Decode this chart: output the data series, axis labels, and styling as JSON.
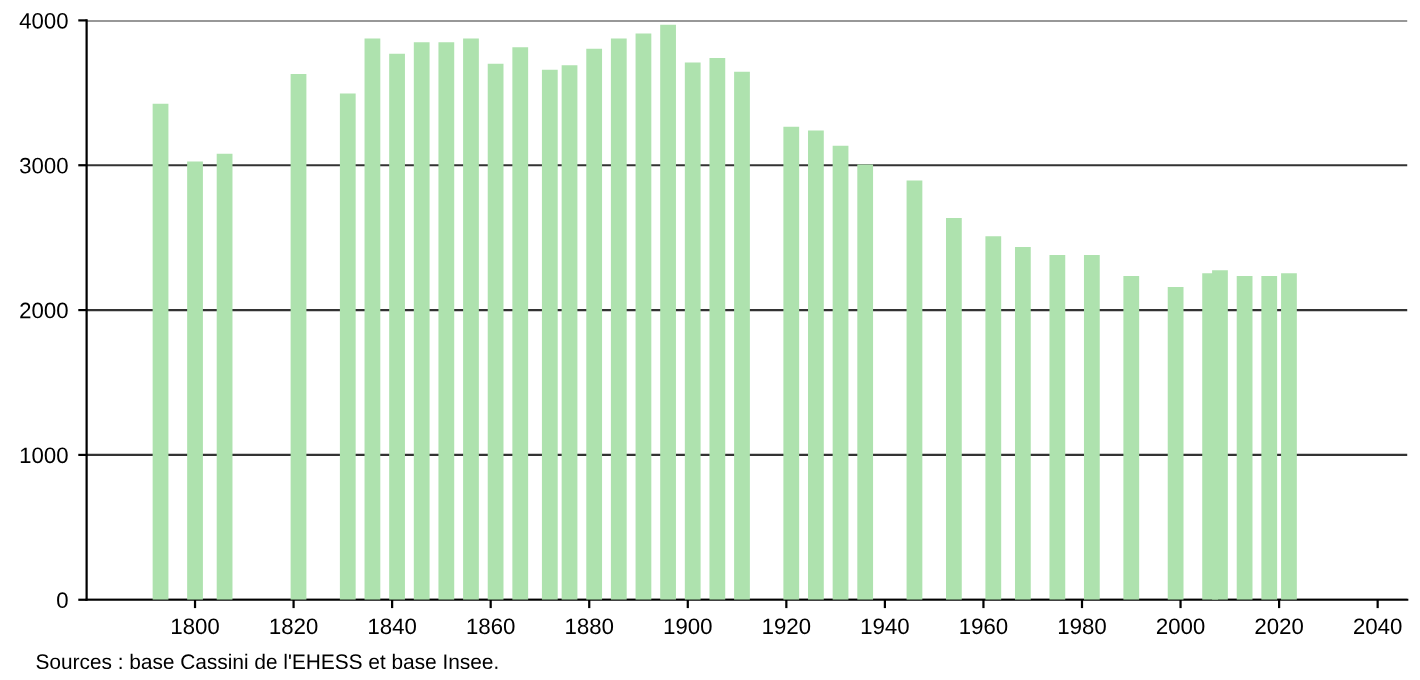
{
  "chart_data": {
    "type": "bar",
    "x": [
      1793,
      1800,
      1806,
      1821,
      1831,
      1836,
      1841,
      1846,
      1851,
      1856,
      1861,
      1866,
      1872,
      1876,
      1881,
      1886,
      1891,
      1896,
      1901,
      1906,
      1911,
      1921,
      1926,
      1931,
      1936,
      1946,
      1954,
      1962,
      1968,
      1975,
      1982,
      1990,
      1999,
      2006,
      2008,
      2013,
      2018,
      2022
    ],
    "values": [
      3425,
      3025,
      3080,
      3630,
      3495,
      3875,
      3770,
      3850,
      3850,
      3875,
      3700,
      3815,
      3660,
      3690,
      3805,
      3875,
      3910,
      3970,
      3710,
      3740,
      3645,
      3265,
      3240,
      3135,
      3005,
      2895,
      2635,
      2510,
      2435,
      2380,
      2380,
      2235,
      2160,
      2255,
      2275,
      2235,
      2235,
      2255
    ],
    "color": "#aee2ae",
    "xlim": [
      1778,
      2046
    ],
    "xticks": [
      1800,
      1820,
      1840,
      1860,
      1880,
      1900,
      1920,
      1940,
      1960,
      1980,
      2000,
      2020,
      2040
    ],
    "ylim": [
      0,
      4000
    ],
    "yticks": [
      0,
      1000,
      2000,
      3000,
      4000
    ],
    "grid": "y",
    "annotations": [
      "Sources : base Cassini de l'EHESS et base Insee."
    ]
  }
}
